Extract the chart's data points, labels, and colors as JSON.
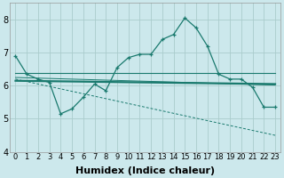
{
  "xlabel": "Humidex (Indice chaleur)",
  "background_color": "#cce8ec",
  "grid_color": "#aacccc",
  "line_color": "#1a7a6e",
  "xlim": [
    -0.5,
    23.5
  ],
  "ylim": [
    4.0,
    8.5
  ],
  "yticks": [
    4,
    5,
    6,
    7,
    8
  ],
  "xticks": [
    0,
    1,
    2,
    3,
    4,
    5,
    6,
    7,
    8,
    9,
    10,
    11,
    12,
    13,
    14,
    15,
    16,
    17,
    18,
    19,
    20,
    21,
    22,
    23
  ],
  "main_x": [
    0,
    1,
    2,
    3,
    4,
    5,
    6,
    7,
    8,
    9,
    10,
    11,
    12,
    13,
    14,
    15,
    16,
    17,
    18,
    19,
    20,
    21,
    22,
    23
  ],
  "main_y": [
    6.9,
    6.35,
    6.2,
    6.1,
    5.15,
    5.3,
    5.65,
    6.05,
    5.85,
    6.55,
    6.85,
    6.95,
    6.95,
    7.4,
    7.55,
    8.05,
    7.75,
    7.2,
    6.35,
    6.2,
    6.2,
    5.95,
    5.35,
    5.35
  ],
  "line1_x": [
    0,
    23
  ],
  "line1_y": [
    6.38,
    6.38
  ],
  "line2_x": [
    0,
    23
  ],
  "line2_y": [
    6.15,
    6.05
  ],
  "line3_x": [
    0,
    23
  ],
  "line3_y": [
    6.25,
    6.02
  ],
  "line4_x": [
    0,
    23
  ],
  "line4_y": [
    6.2,
    4.5
  ],
  "font_size": 7
}
